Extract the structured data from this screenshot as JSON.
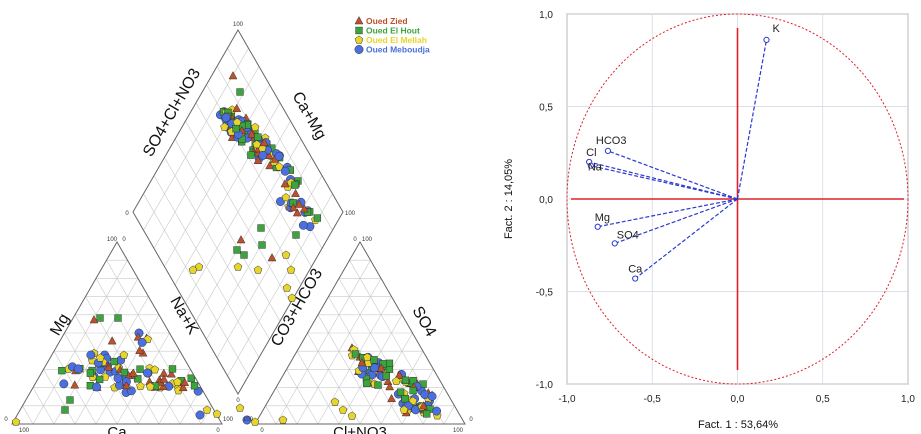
{
  "chart_data": [
    {
      "type": "scatter",
      "subtype": "piper-diagram",
      "legend": {
        "position": "top-right",
        "entries": [
          {
            "name": "Oued Zied",
            "marker": "triangle",
            "color": "#c0502a"
          },
          {
            "name": "Oued El Hout",
            "marker": "square",
            "color": "#3aa53a"
          },
          {
            "name": "Oued El Mellah",
            "marker": "pentagon",
            "color": "#e8d52a"
          },
          {
            "name": "Oued Meboudja",
            "marker": "circle",
            "color": "#4a6fe0"
          }
        ]
      },
      "axis_labels": {
        "diamond_left": "SO4+Cl+NO3",
        "diamond_right": "Ca+Mg",
        "cation_left": "Mg",
        "cation_right": "Na+K",
        "cation_bottom": "Ca",
        "anion_left": "CO3+HCO3",
        "anion_right": "SO4",
        "anion_bottom": "Cl+NO3"
      },
      "tick_labels": [
        "100",
        "0",
        "100",
        "0",
        "100",
        "0",
        "100",
        "0",
        "100",
        "0",
        "100",
        "0",
        "100",
        "0",
        "100",
        "0"
      ],
      "clusters_percent": {
        "cation": {
          "ca_range": [
            10,
            45
          ],
          "mg_range": [
            20,
            45
          ]
        },
        "anion": {
          "so4_range": [
            25,
            55
          ],
          "cl_range": [
            45,
            85
          ]
        },
        "diamond": {
          "so4cl_range": [
            60,
            95
          ],
          "camg_range": [
            30,
            70
          ]
        }
      }
    },
    {
      "type": "scatter",
      "subtype": "pca-correlation-circle",
      "xlabel": "Fact. 1  : 53,64%",
      "ylabel": "Fact. 2  : 14,05%",
      "xlim": [
        -1.0,
        1.0
      ],
      "ylim": [
        -1.0,
        1.0
      ],
      "xticks": [
        "-1,0",
        "-0,5",
        "0,0",
        "0,5",
        "1,0"
      ],
      "yticks": [
        "1,0",
        "0,5",
        "0,0",
        "-0,5",
        "-1,0"
      ],
      "grid": true,
      "unit_circle": true,
      "variables": [
        {
          "name": "K",
          "x": 0.17,
          "y": 0.86
        },
        {
          "name": "HCO3",
          "x": -0.76,
          "y": 0.26
        },
        {
          "name": "Cl",
          "x": -0.87,
          "y": 0.2
        },
        {
          "name": "Na",
          "x": -0.86,
          "y": 0.18
        },
        {
          "name": "Mg",
          "x": -0.82,
          "y": -0.15
        },
        {
          "name": "SO4",
          "x": -0.72,
          "y": -0.24
        },
        {
          "name": "Ca",
          "x": -0.6,
          "y": -0.43
        }
      ]
    }
  ]
}
